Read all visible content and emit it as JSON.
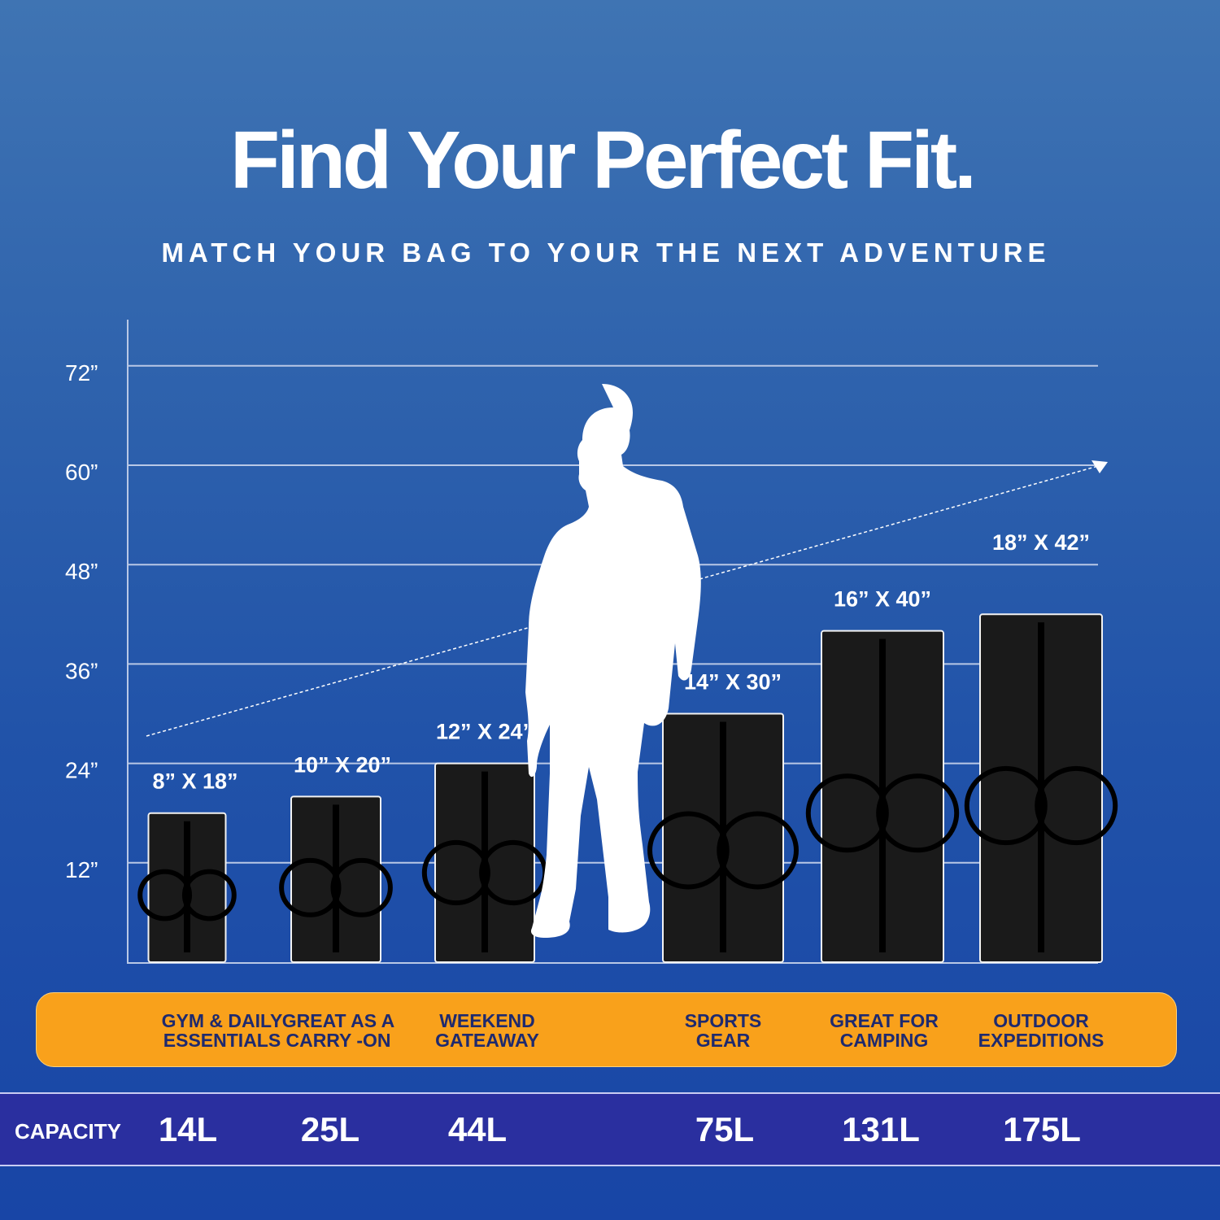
{
  "title": "Find Your Perfect Fit.",
  "subtitle": "MATCH YOUR BAG TO YOUR THE NEXT ADVENTURE",
  "colors": {
    "band": "#f9a11b",
    "capacity_bar": "#2a2f9f",
    "bag": "#1a1a1a"
  },
  "chart_data": {
    "type": "bar",
    "ylabel": "",
    "yticks": [
      "12”",
      "24”",
      "36”",
      "48”",
      "60”",
      "72”"
    ],
    "ylim": [
      0,
      72
    ],
    "grid": true,
    "categories": [
      "8” X 18”",
      "10” X 20”",
      "12” X 24”",
      "14” X 30”",
      "16” X 40”",
      "18” X 42”"
    ],
    "values": [
      18,
      20,
      24,
      30,
      40,
      42
    ],
    "widths": [
      8,
      10,
      12,
      14,
      16,
      18
    ],
    "trend_arrow": true
  },
  "uses": [
    "GYM & DAILY\nESSENTIALS",
    "GREAT AS A\nCARRY -ON",
    "WEEKEND\nGATEAWAY",
    "SPORTS\nGEAR",
    "GREAT FOR\nCAMPING",
    "OUTDOOR\nEXPEDITIONS"
  ],
  "capacity": {
    "label": "CAPACITY",
    "values": [
      "14L",
      "25L",
      "44L",
      "75L",
      "131L",
      "175L"
    ]
  },
  "icons": {
    "figure": "man-silhouette-icon"
  }
}
